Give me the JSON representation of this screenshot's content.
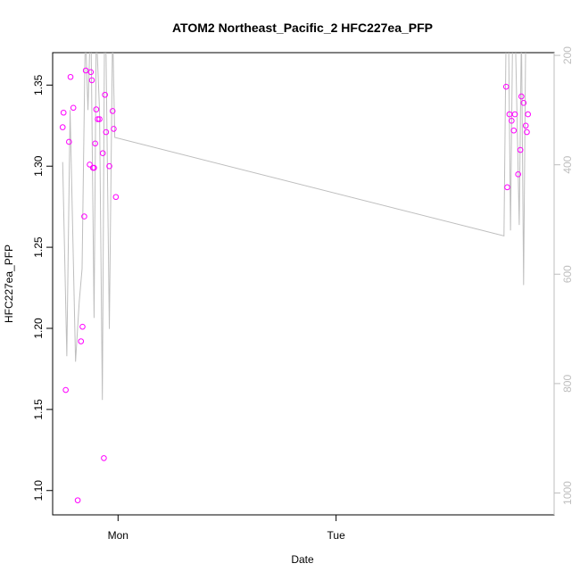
{
  "chart_data": {
    "type": "scatter",
    "title": "ATOM2 Northeast_Pacific_2 HFC227ea_PFP",
    "xlabel": "Date",
    "ylabel": "HFC227ea_PFP",
    "x_ticks": [
      {
        "label": "Mon",
        "x": 0.0
      },
      {
        "label": "Tue",
        "x": 1.0
      }
    ],
    "xlim": [
      -0.3,
      2.0
    ],
    "ylim": [
      1.085,
      1.37
    ],
    "y_ticks": [
      1.1,
      1.15,
      1.2,
      1.25,
      1.3,
      1.35
    ],
    "y_tick_labels": [
      "1.10",
      "1.15",
      "1.20",
      "1.25",
      "1.30",
      "1.35"
    ],
    "y2lim": [
      1040,
      195
    ],
    "y2_ticks": [
      200,
      400,
      600,
      800,
      1000
    ],
    "y2_tick_labels": [
      "200",
      "400",
      "600",
      "800",
      "1000"
    ],
    "grid": false,
    "colors": {
      "points": "#ff00ff",
      "line": "#bebebe",
      "right_axis": "#bebebe"
    },
    "series": [
      {
        "marker": "open-circle",
        "axis": "left",
        "x": [
          -0.254,
          -0.25,
          -0.24,
          -0.225,
          -0.218,
          -0.205,
          -0.185,
          -0.17,
          -0.163,
          -0.155,
          -0.148,
          -0.13,
          -0.125,
          -0.12,
          -0.115,
          -0.11,
          -0.105,
          -0.1,
          -0.093,
          -0.085,
          -0.07,
          -0.065,
          -0.06,
          -0.055,
          -0.04,
          -0.025,
          -0.02,
          -0.01
        ],
        "y": [
          1.324,
          1.333,
          1.162,
          1.315,
          1.355,
          1.336,
          1.094,
          1.192,
          1.201,
          1.269,
          1.359,
          1.301,
          1.358,
          1.353,
          1.299,
          1.299,
          1.314,
          1.335,
          1.329,
          1.329,
          1.308,
          1.12,
          1.344,
          1.321,
          1.3,
          1.334,
          1.323,
          1.281
        ]
      },
      {
        "marker": "open-circle",
        "axis": "left",
        "x": [
          1.78,
          1.785,
          1.795,
          1.805,
          1.815,
          1.82,
          1.835,
          1.845,
          1.85,
          1.86,
          1.87,
          1.875,
          1.88
        ],
        "y": [
          1.349,
          1.287,
          1.332,
          1.328,
          1.322,
          1.332,
          1.295,
          1.31,
          1.343,
          1.339,
          1.325,
          1.321,
          1.332
        ]
      },
      {
        "marker": "line",
        "axis": "right",
        "x": [
          -0.254,
          -0.235,
          -0.22,
          -0.195,
          -0.178,
          -0.165,
          -0.15,
          -0.138,
          -0.125,
          -0.11,
          -0.1,
          -0.085,
          -0.072,
          -0.062,
          -0.055,
          -0.04,
          -0.025,
          -0.015,
          1.77,
          1.78,
          1.79,
          1.8,
          1.81,
          1.82,
          1.84,
          1.85,
          1.86,
          1.87,
          1.88,
          1.895
        ],
        "y": [
          395,
          750,
          300,
          760,
          650,
          590,
          150,
          300,
          120,
          680,
          150,
          300,
          830,
          150,
          200,
          700,
          150,
          350,
          530,
          150,
          120,
          520,
          150,
          120,
          510,
          150,
          620,
          150,
          190,
          120
        ]
      }
    ]
  }
}
